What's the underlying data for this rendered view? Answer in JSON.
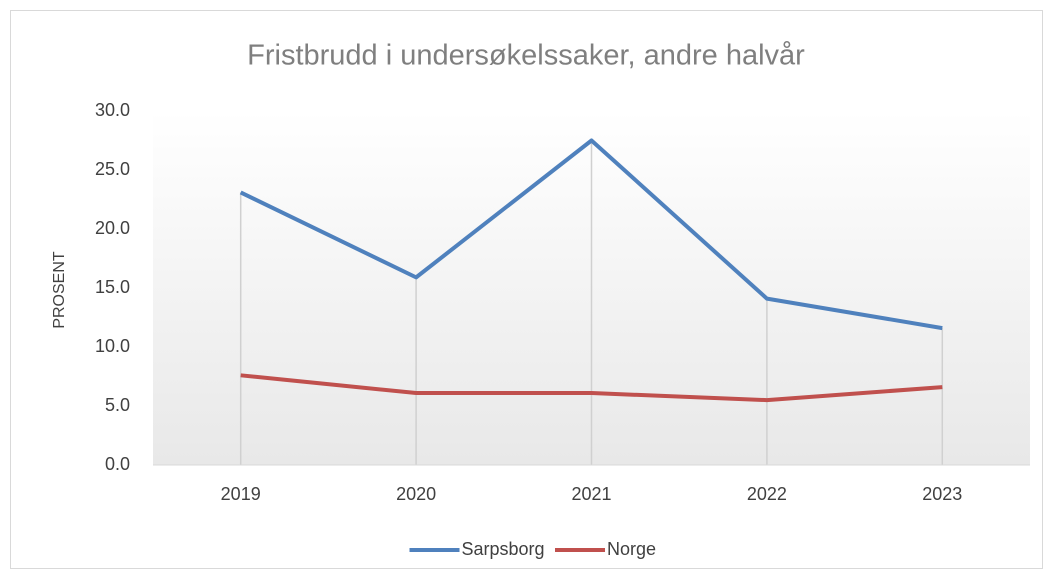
{
  "chart_data": {
    "type": "line",
    "title": "Fristbrudd i undersøkelssaker, andre halvår",
    "y_label": "PROSENT",
    "categories": [
      "2019",
      "2020",
      "2021",
      "2022",
      "2023"
    ],
    "series": [
      {
        "name": "Sarpsborg",
        "color": "#4f81bd",
        "values": [
          23.1,
          15.9,
          27.5,
          14.1,
          11.6
        ]
      },
      {
        "name": "Norge",
        "color": "#c0504d",
        "values": [
          7.6,
          6.1,
          6.1,
          5.5,
          6.6
        ]
      }
    ],
    "ylim": [
      0,
      30
    ],
    "yticks": [
      {
        "value": 0,
        "label": "0.0"
      },
      {
        "value": 5,
        "label": "5.0"
      },
      {
        "value": 10,
        "label": "10.0"
      },
      {
        "value": 15,
        "label": "15.0"
      },
      {
        "value": 20,
        "label": "20.0"
      },
      {
        "value": 25,
        "label": "25.0"
      },
      {
        "value": 30,
        "label": "30.0"
      }
    ],
    "drop_lines": true,
    "legend": "bottom"
  }
}
